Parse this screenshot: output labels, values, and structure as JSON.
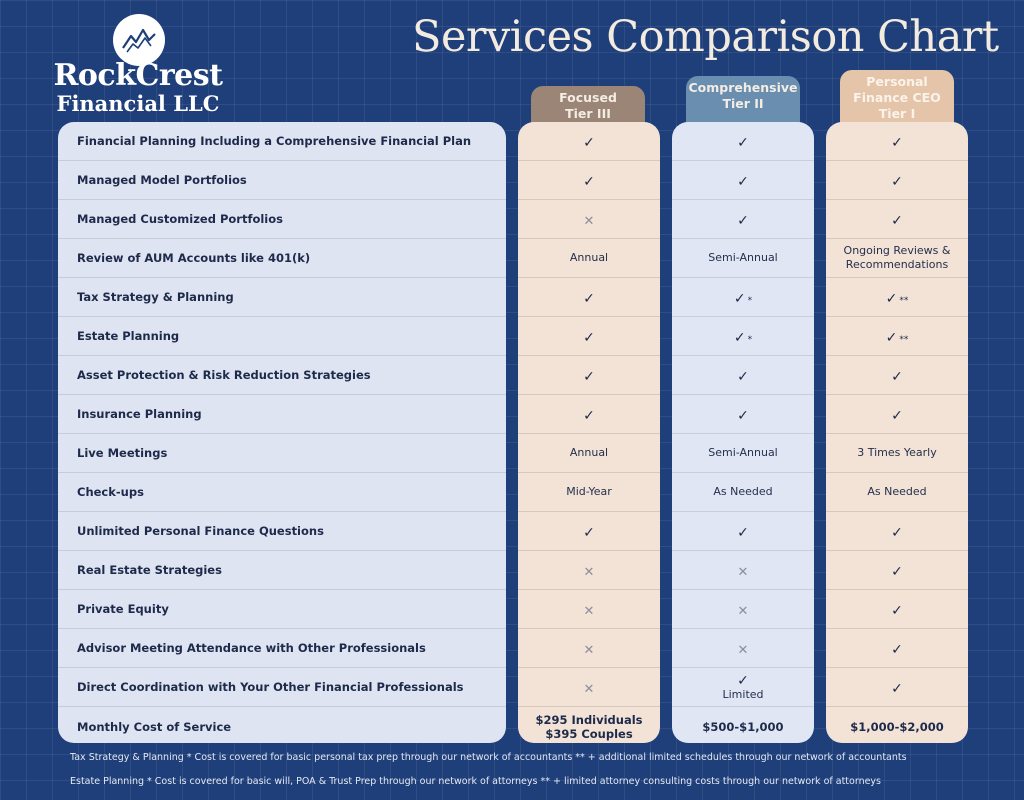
{
  "brand": {
    "line1": "RockCrest",
    "line2": "Financial LLC",
    "logo_icon": "mountain-icon"
  },
  "title": "Services Comparison Chart",
  "tiers": [
    {
      "line1": "Focused",
      "line2": "Tier III",
      "color": "#9b8576"
    },
    {
      "line1": "Comprehensive",
      "line2": "Tier II",
      "color": "#6a8eaf"
    },
    {
      "line1": "Personal",
      "line2": "Finance CEO",
      "line3": "Tier I",
      "color": "#e4c5a9"
    }
  ],
  "rows": [
    {
      "label": "Financial Planning Including a Comprehensive Financial Plan",
      "cells": [
        {
          "mark": "check"
        },
        {
          "mark": "check"
        },
        {
          "mark": "check"
        }
      ]
    },
    {
      "label": "Managed Model Portfolios",
      "cells": [
        {
          "mark": "check"
        },
        {
          "mark": "check"
        },
        {
          "mark": "check"
        }
      ]
    },
    {
      "label": "Managed Customized Portfolios",
      "cells": [
        {
          "mark": "x"
        },
        {
          "mark": "check"
        },
        {
          "mark": "check"
        }
      ]
    },
    {
      "label": "Review of AUM Accounts like 401(k)",
      "cells": [
        {
          "text": "Annual"
        },
        {
          "text": "Semi-Annual"
        },
        {
          "text": "Ongoing Reviews &",
          "text2": "Recommendations"
        }
      ]
    },
    {
      "label": "Tax Strategy & Planning",
      "cells": [
        {
          "mark": "check"
        },
        {
          "mark": "check",
          "suffix": "*"
        },
        {
          "mark": "check",
          "suffix": "**"
        }
      ]
    },
    {
      "label": "Estate Planning",
      "cells": [
        {
          "mark": "check"
        },
        {
          "mark": "check",
          "suffix": "*"
        },
        {
          "mark": "check",
          "suffix": "**"
        }
      ]
    },
    {
      "label": "Asset Protection & Risk Reduction Strategies",
      "cells": [
        {
          "mark": "check"
        },
        {
          "mark": "check"
        },
        {
          "mark": "check"
        }
      ]
    },
    {
      "label": "Insurance Planning",
      "cells": [
        {
          "mark": "check"
        },
        {
          "mark": "check"
        },
        {
          "mark": "check"
        }
      ]
    },
    {
      "label": "Live Meetings",
      "cells": [
        {
          "text": "Annual"
        },
        {
          "text": "Semi-Annual"
        },
        {
          "text": "3 Times Yearly"
        }
      ]
    },
    {
      "label": "Check-ups",
      "cells": [
        {
          "text": "Mid-Year"
        },
        {
          "text": "As Needed"
        },
        {
          "text": "As Needed"
        }
      ]
    },
    {
      "label": "Unlimited Personal Finance Questions",
      "cells": [
        {
          "mark": "check"
        },
        {
          "mark": "check"
        },
        {
          "mark": "check"
        }
      ]
    },
    {
      "label": "Real Estate Strategies",
      "cells": [
        {
          "mark": "x"
        },
        {
          "mark": "x"
        },
        {
          "mark": "check"
        }
      ]
    },
    {
      "label": "Private Equity",
      "cells": [
        {
          "mark": "x"
        },
        {
          "mark": "x"
        },
        {
          "mark": "check"
        }
      ]
    },
    {
      "label": "Advisor Meeting Attendance with Other Professionals",
      "cells": [
        {
          "mark": "x"
        },
        {
          "mark": "x"
        },
        {
          "mark": "check"
        }
      ]
    },
    {
      "label": "Direct Coordination with Your Other Financial Professionals",
      "cells": [
        {
          "mark": "x"
        },
        {
          "mark": "check",
          "below": "Limited"
        },
        {
          "mark": "check"
        }
      ]
    },
    {
      "label": "Monthly Cost of Service",
      "cells": [
        {
          "bold": "$295 Individuals",
          "bold2": "$395 Couples"
        },
        {
          "bold": "$500-$1,000"
        },
        {
          "bold": "$1,000-$2,000"
        }
      ]
    }
  ],
  "footnotes": [
    "Tax Strategy & Planning * Cost is covered for basic personal tax prep through our network of accountants ** + additional limited schedules through our network of accountants",
    "Estate Planning * Cost is covered for basic will, POA & Trust Prep through our network of attorneys ** + limited attorney consulting costs through our network of attorneys"
  ],
  "colors": {
    "background": "#1f3f7a",
    "feature_panel": "#dfe4f3",
    "tier_panel": "#f3e3d6",
    "tier2_panel": "#e1e6f4",
    "text": "#1d2a4a"
  }
}
